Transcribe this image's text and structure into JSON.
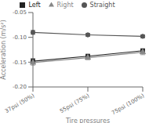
{
  "chart_data": {
    "type": "line",
    "xlabel": "Tire pressures",
    "ylabel": "Acceleration (m/s²)",
    "categories": [
      "37psi (50%)",
      "55psi (75%)",
      "75psi (100%)"
    ],
    "series": [
      {
        "name": "Straight",
        "color": "#555555",
        "marker": "circle",
        "line_style": "solid",
        "values": [
          -0.09,
          -0.095,
          -0.098
        ],
        "errors": [
          0.004,
          0.003,
          0.003
        ]
      },
      {
        "name": "Left",
        "color": "#222222",
        "marker": "square",
        "line_style": "solid",
        "values": [
          -0.148,
          -0.138,
          -0.127
        ],
        "errors": [
          0.005,
          0.004,
          0.004
        ]
      },
      {
        "name": "Right",
        "color": "#888888",
        "marker": "triangle",
        "line_style": "solid",
        "values": [
          -0.151,
          -0.141,
          -0.13
        ],
        "errors": [
          0.005,
          0.004,
          0.005
        ]
      }
    ],
    "ylim": [
      -0.2,
      -0.05
    ],
    "yticks": [
      {
        "value": -0.2,
        "label": "-0.20"
      },
      -0.15,
      {
        "value": -0.1,
        "label": "-0.10"
      },
      -0.05
    ],
    "grid": false,
    "legend": "top"
  }
}
